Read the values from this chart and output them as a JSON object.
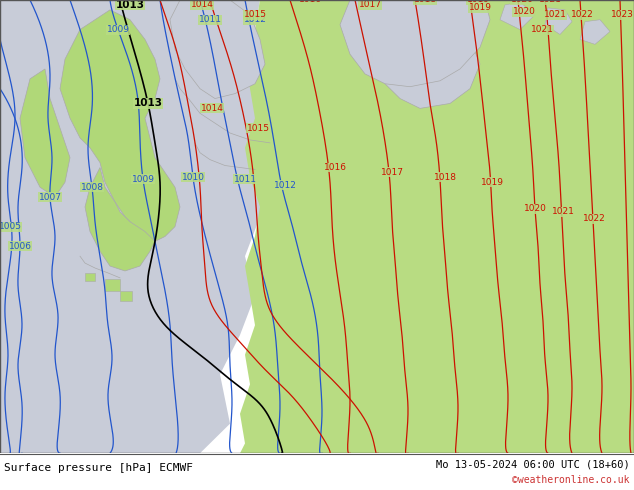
{
  "title_left": "Surface pressure [hPa] ECMWF",
  "title_right": "Mo 13-05-2024 06:00 UTC (18+60)",
  "watermark": "©weatheronline.co.uk",
  "bg_green": "#b8dc82",
  "bg_gray": "#c8ccd8",
  "land_green": "#b0d878",
  "coast_gray": "#b8bcc8",
  "line_blue": "#2255cc",
  "line_black": "#000000",
  "line_red": "#cc1100",
  "coast_line": "#aaaaaa",
  "bottom_bg": "#e8e8e8",
  "figsize": [
    6.34,
    4.9
  ],
  "dpi": 100,
  "label_fontsize": 6.5,
  "title_fontsize": 8,
  "watermark_fontsize": 7,
  "watermark_color": "#cc3333"
}
